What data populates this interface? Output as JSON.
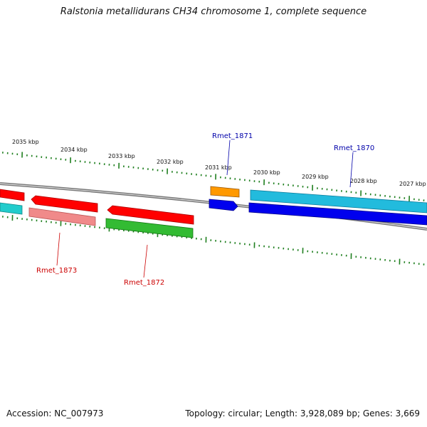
{
  "title": "Ralstonia metallidurans CH34 chromosome 1, complete sequence",
  "footer": {
    "accession": "Accession: NC_007973",
    "summary": "Topology: circular; Length: 3,928,089 bp; Genes: 3,669"
  },
  "colors": {
    "backbone": "#8a8a8a",
    "tick": "#1f7f1f",
    "label_forward": "#0000aa",
    "label_reverse": "#cc0000",
    "red": "#ff0000",
    "pink": "#f08a8a",
    "green": "#33bb33",
    "orange": "#ff9900",
    "blue": "#0000ee",
    "cyan": "#22bbdd"
  },
  "kbp_labels": [
    "2035 kbp",
    "2034 kbp",
    "2033 kbp",
    "2032 kbp",
    "2031 kbp",
    "2030 kbp",
    "2029 kbp",
    "2028 kbp",
    "2027 kbp"
  ],
  "gene_labels": {
    "rmet_1871": "Rmet_1871",
    "rmet_1870": "Rmet_1870",
    "rmet_1873": "Rmet_1873",
    "rmet_1872": "Rmet_1872"
  }
}
